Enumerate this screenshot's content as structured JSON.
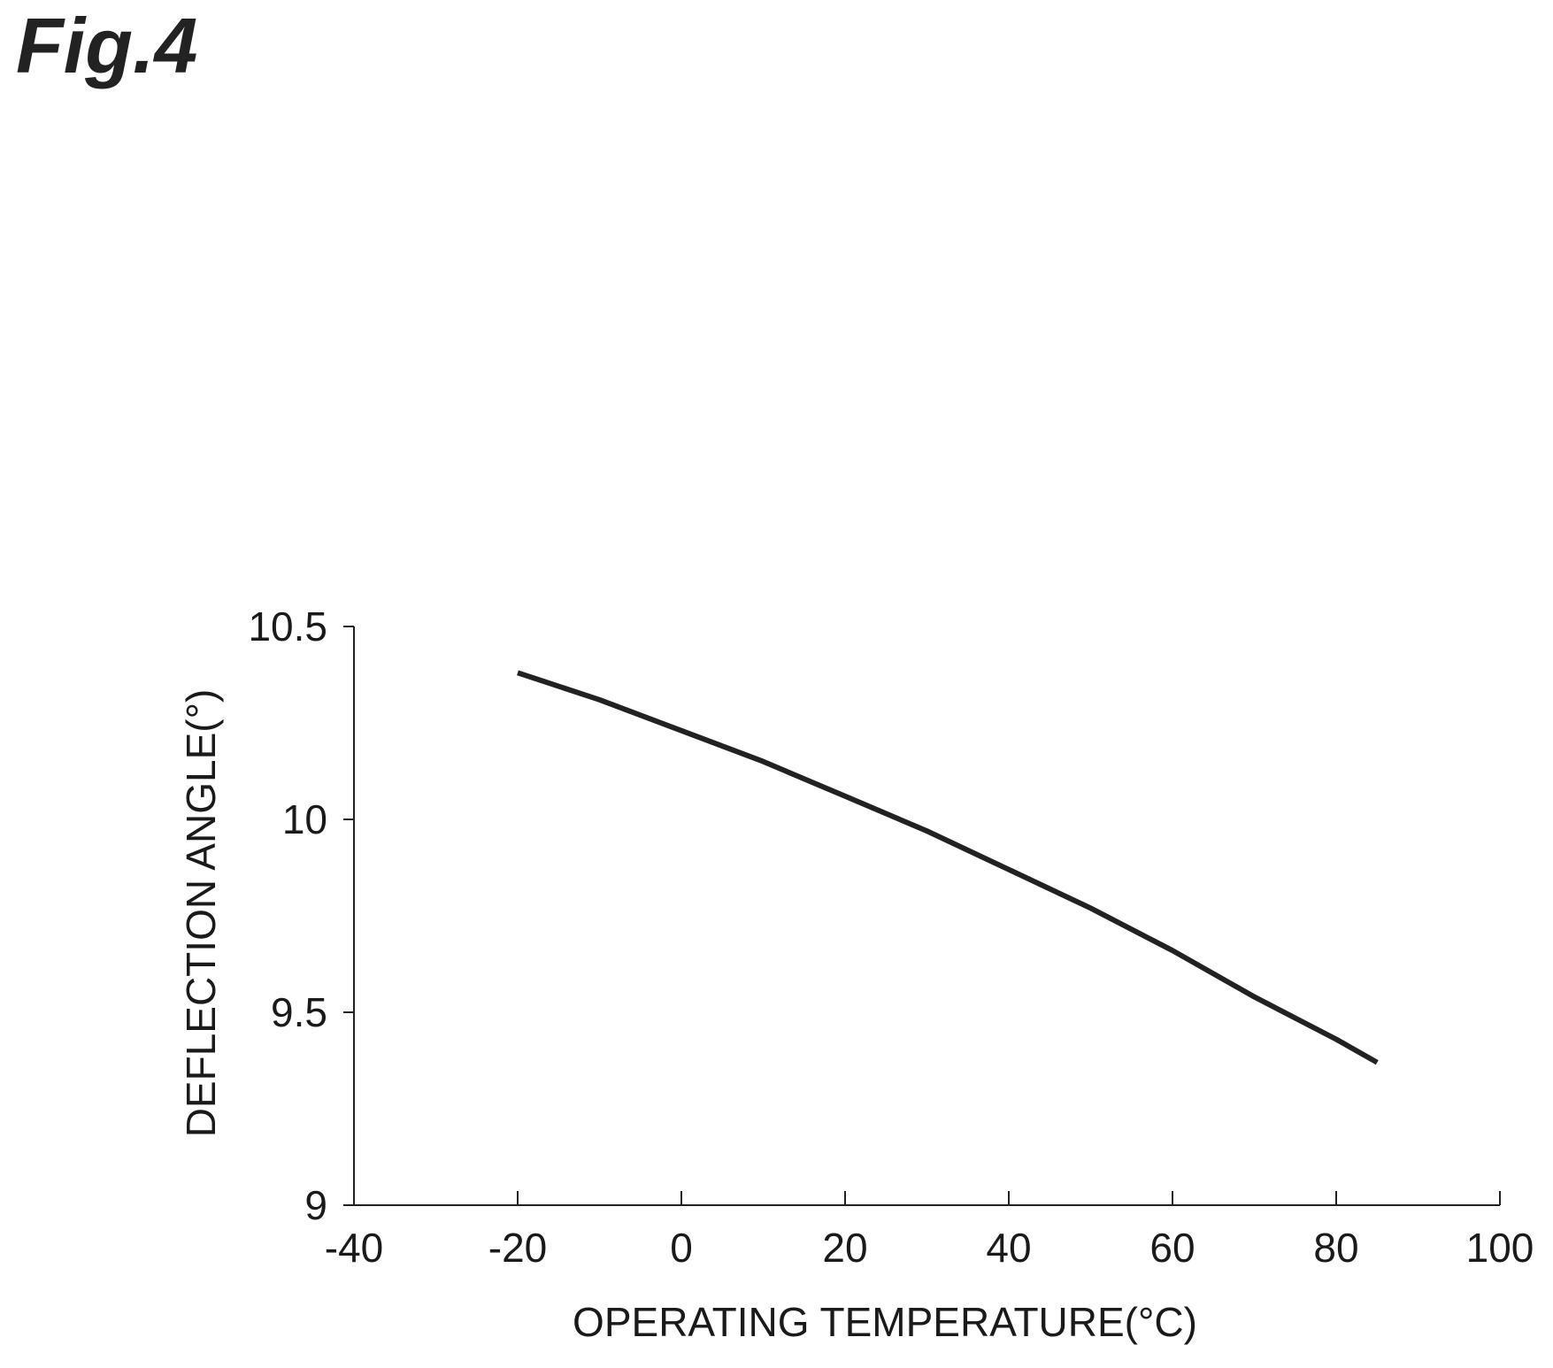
{
  "figure": {
    "title": "Fig.4"
  },
  "chart_data": {
    "type": "line",
    "title": "",
    "xlabel": "OPERATING TEMPERATURE(°C)",
    "ylabel": "DEFLECTION ANGLE(°)",
    "xlim": [
      -40,
      100
    ],
    "ylim": [
      9,
      10.5
    ],
    "xticks": [
      -40,
      -20,
      0,
      20,
      40,
      60,
      80,
      100
    ],
    "yticks": [
      9,
      9.5,
      10,
      10.5
    ],
    "xtick_labels": [
      "-40",
      "-20",
      "0",
      "20",
      "40",
      "60",
      "80",
      "100"
    ],
    "ytick_labels": [
      "9",
      "9.5",
      "10",
      "10.5"
    ],
    "grid": false,
    "line_color": "#222222",
    "series": [
      {
        "x": [
          -20,
          -10,
          0,
          10,
          20,
          30,
          40,
          50,
          60,
          70,
          80,
          85
        ],
        "y": [
          10.38,
          10.31,
          10.23,
          10.15,
          10.06,
          9.97,
          9.87,
          9.77,
          9.66,
          9.54,
          9.43,
          9.37
        ]
      }
    ]
  }
}
